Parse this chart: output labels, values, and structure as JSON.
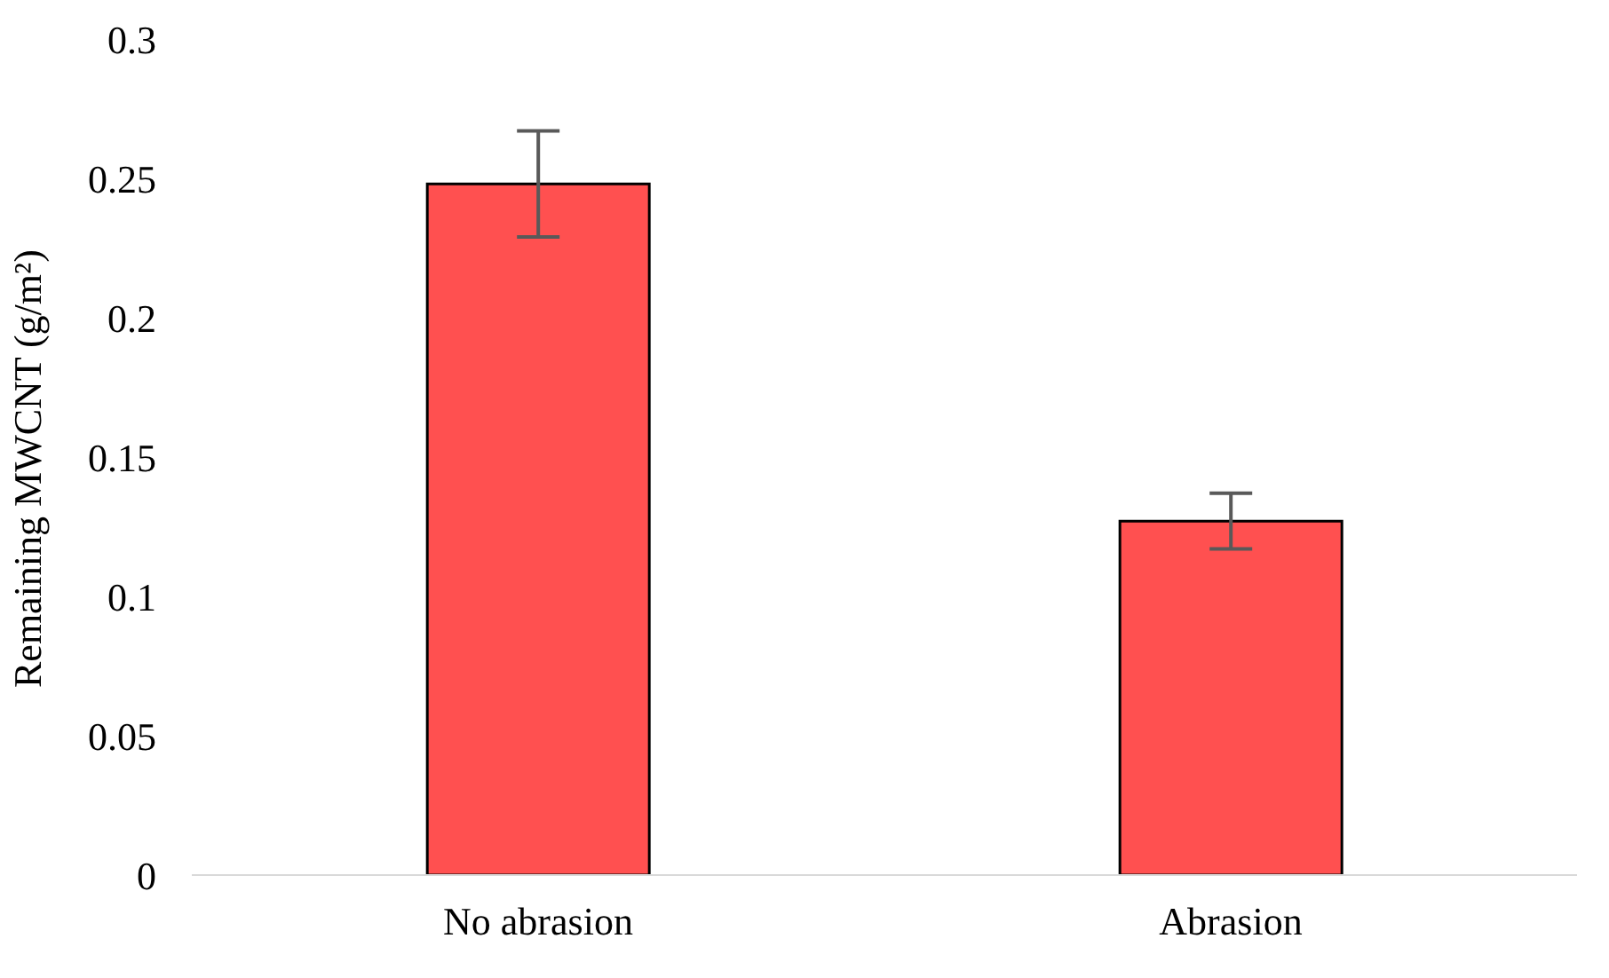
{
  "chart_data": {
    "type": "bar",
    "ylabel": "Remaining MWCNT (g/m²)",
    "categories": [
      "No abrasion",
      "Abrasion"
    ],
    "values": [
      0.248,
      0.127
    ],
    "errors": [
      0.019,
      0.01
    ],
    "color": "#ff5050",
    "ylim": [
      0,
      0.3
    ],
    "yticks": [
      0,
      0.05,
      0.1,
      0.15,
      0.2,
      0.25,
      0.3
    ],
    "grid": false,
    "legend": false
  }
}
